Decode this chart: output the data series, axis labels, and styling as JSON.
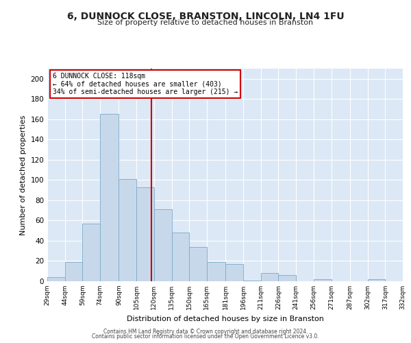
{
  "title": "6, DUNNOCK CLOSE, BRANSTON, LINCOLN, LN4 1FU",
  "subtitle": "Size of property relative to detached houses in Branston",
  "xlabel": "Distribution of detached houses by size in Branston",
  "ylabel": "Number of detached properties",
  "bar_color": "#c8d8eb",
  "bar_edge_color": "#7aaac8",
  "fig_bg_color": "#ffffff",
  "ax_bg_color": "#dce8f5",
  "grid_color": "#ffffff",
  "vline_x": 118,
  "vline_color": "#cc0000",
  "annotation_title": "6 DUNNOCK CLOSE: 118sqm",
  "annotation_line1": "← 64% of detached houses are smaller (403)",
  "annotation_line2": "34% of semi-detached houses are larger (215) →",
  "annotation_box_edge_color": "#cc0000",
  "bin_edges": [
    29,
    44,
    59,
    74,
    90,
    105,
    120,
    135,
    150,
    165,
    181,
    196,
    211,
    226,
    241,
    256,
    271,
    287,
    302,
    317,
    332
  ],
  "bin_counts": [
    4,
    19,
    57,
    165,
    101,
    93,
    71,
    48,
    34,
    19,
    17,
    1,
    8,
    6,
    0,
    2,
    0,
    0,
    2,
    0
  ],
  "ylim": [
    0,
    210
  ],
  "yticks": [
    0,
    20,
    40,
    60,
    80,
    100,
    120,
    140,
    160,
    180,
    200
  ],
  "footer1": "Contains HM Land Registry data © Crown copyright and database right 2024.",
  "footer2": "Contains public sector information licensed under the Open Government Licence v3.0."
}
